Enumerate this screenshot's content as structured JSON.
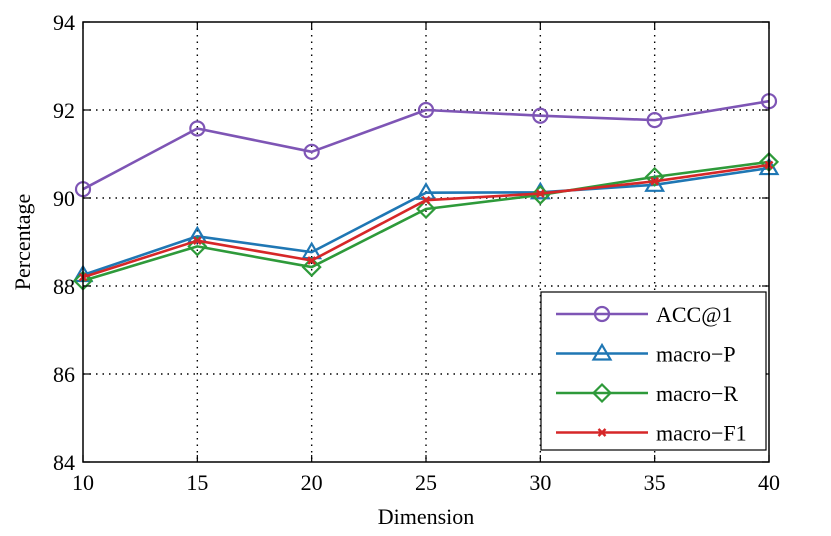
{
  "chart_data": {
    "type": "line",
    "x": [
      10,
      15,
      20,
      25,
      30,
      35,
      40
    ],
    "xlim": [
      10,
      40
    ],
    "ylim": [
      84,
      94
    ],
    "xticks": [
      "10",
      "15",
      "20",
      "25",
      "30",
      "35",
      "40"
    ],
    "yticks": [
      "84",
      "86",
      "88",
      "90",
      "92",
      "94"
    ],
    "xlabel": "Dimension",
    "ylabel": "Percentage",
    "grid": true,
    "legend_position": "bottom-right",
    "series": [
      {
        "name": "ACC@1",
        "color": "#7E55B5",
        "marker": "circle",
        "values": [
          90.2,
          91.58,
          91.05,
          92.0,
          91.87,
          91.77,
          92.2
        ]
      },
      {
        "name": "macro−P",
        "color": "#1F77B4",
        "marker": "triangle",
        "values": [
          88.25,
          89.13,
          88.77,
          90.12,
          90.13,
          90.3,
          90.68
        ]
      },
      {
        "name": "macro−R",
        "color": "#2E9A3A",
        "marker": "diamond",
        "values": [
          88.12,
          88.9,
          88.43,
          89.75,
          90.07,
          90.48,
          90.82
        ]
      },
      {
        "name": "macro−F1",
        "color": "#D62728",
        "marker": "x",
        "values": [
          88.2,
          89.03,
          88.58,
          89.95,
          90.1,
          90.38,
          90.75
        ]
      }
    ]
  }
}
